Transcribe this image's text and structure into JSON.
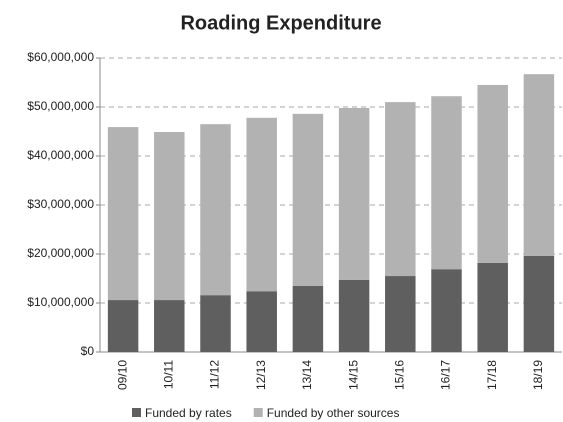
{
  "chart_data": {
    "type": "stacked_bar",
    "title": "Roading Expenditure",
    "categories": [
      "09/10",
      "10/11",
      "11/12",
      "12/13",
      "13/14",
      "14/15",
      "15/16",
      "16/17",
      "17/18",
      "18/19"
    ],
    "series": [
      {
        "name": "Funded by rates",
        "color": "#5f5f5f",
        "values": [
          10600000,
          10600000,
          11600000,
          12400000,
          13500000,
          14700000,
          15500000,
          16900000,
          18200000,
          19600000
        ]
      },
      {
        "name": "Funded by other sources",
        "color": "#b2b2b2",
        "values": [
          35300000,
          34300000,
          34900000,
          35400000,
          35100000,
          35100000,
          35500000,
          35300000,
          36300000,
          37100000
        ]
      }
    ],
    "ylim": [
      0,
      60000000
    ],
    "yticks": [
      {
        "value": 0,
        "label": "$0"
      },
      {
        "value": 10000000,
        "label": "$10,000,000"
      },
      {
        "value": 20000000,
        "label": "$20,000,000"
      },
      {
        "value": 30000000,
        "label": "$30,000,000"
      },
      {
        "value": 40000000,
        "label": "$40,000,000"
      },
      {
        "value": 50000000,
        "label": "$50,000,000"
      },
      {
        "value": 60000000,
        "label": "$60,000,000"
      }
    ],
    "grid": true
  }
}
